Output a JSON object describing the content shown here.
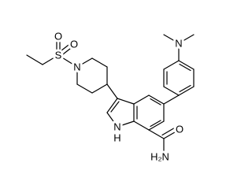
{
  "atoms": [
    {
      "label": "N"
    },
    {
      "label": "N"
    },
    {
      "label": "S"
    },
    {
      "label": "O"
    },
    {
      "label": "O"
    },
    {
      "label": "N"
    },
    {
      "label": "H"
    },
    {
      "label": "O"
    },
    {
      "label": "H₂N"
    }
  ]
}
